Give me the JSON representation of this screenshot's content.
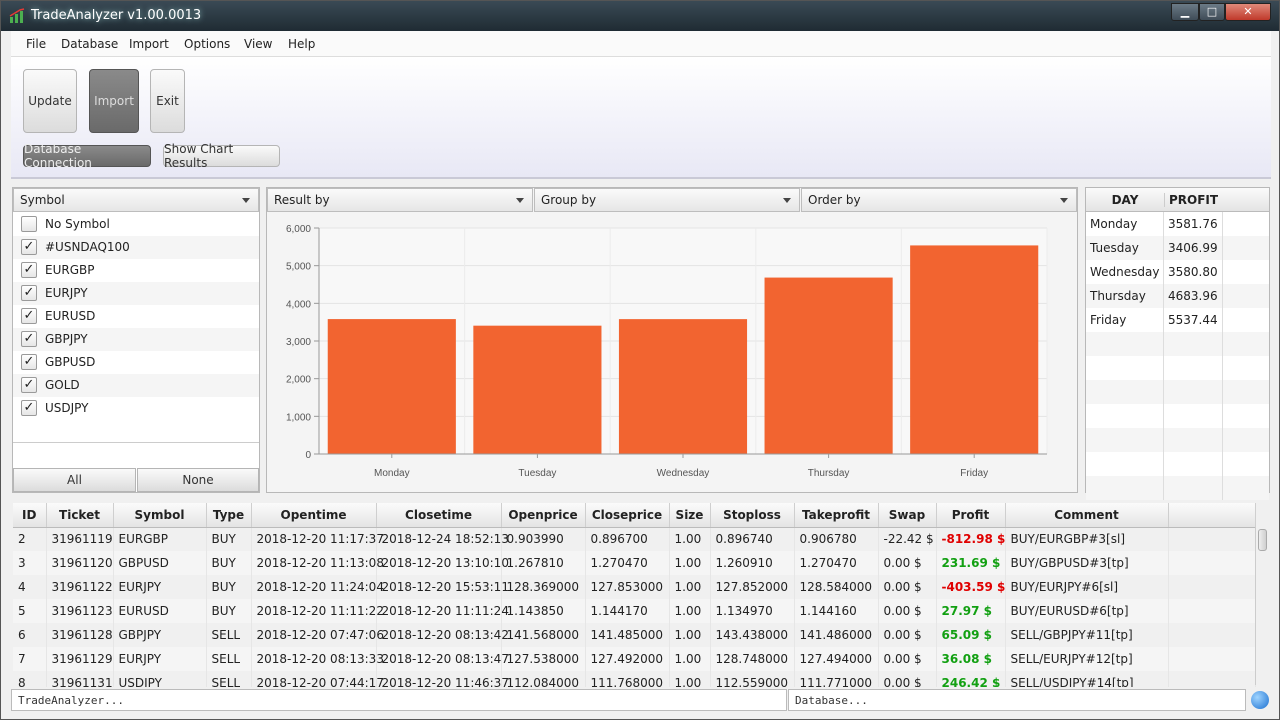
{
  "window": {
    "title": "TradeAnalyzer v1.00.0013",
    "min": "▁",
    "max": "□",
    "close": "✕"
  },
  "menu": [
    "File",
    "Database",
    "Import",
    "Options",
    "View",
    "Help"
  ],
  "toolbar": {
    "update": "Update",
    "import": "Import",
    "exit": "Exit",
    "db_connection": "Database Connection",
    "show_chart": "Show Chart Results"
  },
  "symbols": {
    "header": "Symbol",
    "items": [
      {
        "label": "No Symbol",
        "checked": false
      },
      {
        "label": "#USNDAQ100",
        "checked": true
      },
      {
        "label": "EURGBP",
        "checked": true
      },
      {
        "label": "EURJPY",
        "checked": true
      },
      {
        "label": "EURUSD",
        "checked": true
      },
      {
        "label": "GBPJPY",
        "checked": true
      },
      {
        "label": "GBPUSD",
        "checked": true
      },
      {
        "label": "GOLD",
        "checked": true
      },
      {
        "label": "USDJPY",
        "checked": true
      }
    ],
    "all_btn": "All",
    "none_btn": "None"
  },
  "filters": {
    "result_by": "Result by",
    "group_by": "Group by",
    "order_by": "Order by"
  },
  "chart_data": {
    "type": "bar",
    "categories": [
      "Monday",
      "Tuesday",
      "Wednesday",
      "Thursday",
      "Friday"
    ],
    "values": [
      3581.76,
      3406.99,
      3580.8,
      4683.96,
      5537.44
    ],
    "ylim": [
      0,
      6000
    ],
    "yticks": [
      "0",
      "1,000",
      "2,000",
      "3,000",
      "4,000",
      "5,000",
      "6,000"
    ],
    "grid": true,
    "color": "#f26430"
  },
  "summary": {
    "headers": [
      "DAY",
      "PROFIT"
    ],
    "rows": [
      [
        "Monday",
        "3581.76"
      ],
      [
        "Tuesday",
        "3406.99"
      ],
      [
        "Wednesday",
        "3580.80"
      ],
      [
        "Thursday",
        "4683.96"
      ],
      [
        "Friday",
        "5537.44"
      ]
    ]
  },
  "trades": {
    "headers": [
      "ID",
      "Ticket",
      "Symbol",
      "Type",
      "Opentime",
      "Closetime",
      "Openprice",
      "Closeprice",
      "Size",
      "Stoploss",
      "Takeprofit",
      "Swap",
      "Profit",
      "Comment"
    ],
    "rows": [
      [
        "2",
        "31961119",
        "EURGBP",
        "BUY",
        "2018-12-20 11:17:37",
        "2018-12-24 18:52:13",
        "0.903990",
        "0.896700",
        "1.00",
        "0.896740",
        "0.906780",
        "-22.42 $",
        "-812.98 $",
        "BUY/EURGBP#3[sl]"
      ],
      [
        "3",
        "31961120",
        "GBPUSD",
        "BUY",
        "2018-12-20 11:13:08",
        "2018-12-20 13:10:10",
        "1.267810",
        "1.270470",
        "1.00",
        "1.260910",
        "1.270470",
        "0.00 $",
        "231.69 $",
        "BUY/GBPUSD#3[tp]"
      ],
      [
        "4",
        "31961122",
        "EURJPY",
        "BUY",
        "2018-12-20 11:24:04",
        "2018-12-20 15:53:11",
        "128.369000",
        "127.853000",
        "1.00",
        "127.852000",
        "128.584000",
        "0.00 $",
        "-403.59 $",
        "BUY/EURJPY#6[sl]"
      ],
      [
        "5",
        "31961123",
        "EURUSD",
        "BUY",
        "2018-12-20 11:11:22",
        "2018-12-20 11:11:24",
        "1.143850",
        "1.144170",
        "1.00",
        "1.134970",
        "1.144160",
        "0.00 $",
        "27.97 $",
        "BUY/EURUSD#6[tp]"
      ],
      [
        "6",
        "31961128",
        "GBPJPY",
        "SELL",
        "2018-12-20 07:47:06",
        "2018-12-20 08:13:42",
        "141.568000",
        "141.485000",
        "1.00",
        "143.438000",
        "141.486000",
        "0.00 $",
        "65.09 $",
        "SELL/GBPJPY#11[tp]"
      ],
      [
        "7",
        "31961129",
        "EURJPY",
        "SELL",
        "2018-12-20 08:13:33",
        "2018-12-20 08:13:47",
        "127.538000",
        "127.492000",
        "1.00",
        "128.748000",
        "127.494000",
        "0.00 $",
        "36.08 $",
        "SELL/EURJPY#12[tp]"
      ],
      [
        "8",
        "31961131",
        "USDJPY",
        "SELL",
        "2018-12-20 07:44:17",
        "2018-12-20 11:46:37",
        "112.084000",
        "111.768000",
        "1.00",
        "112.559000",
        "111.771000",
        "0.00 $",
        "246.42 $",
        "SELL/USDJPY#14[tp]"
      ]
    ]
  },
  "status": {
    "left": "TradeAnalyzer...",
    "right": "Database..."
  }
}
